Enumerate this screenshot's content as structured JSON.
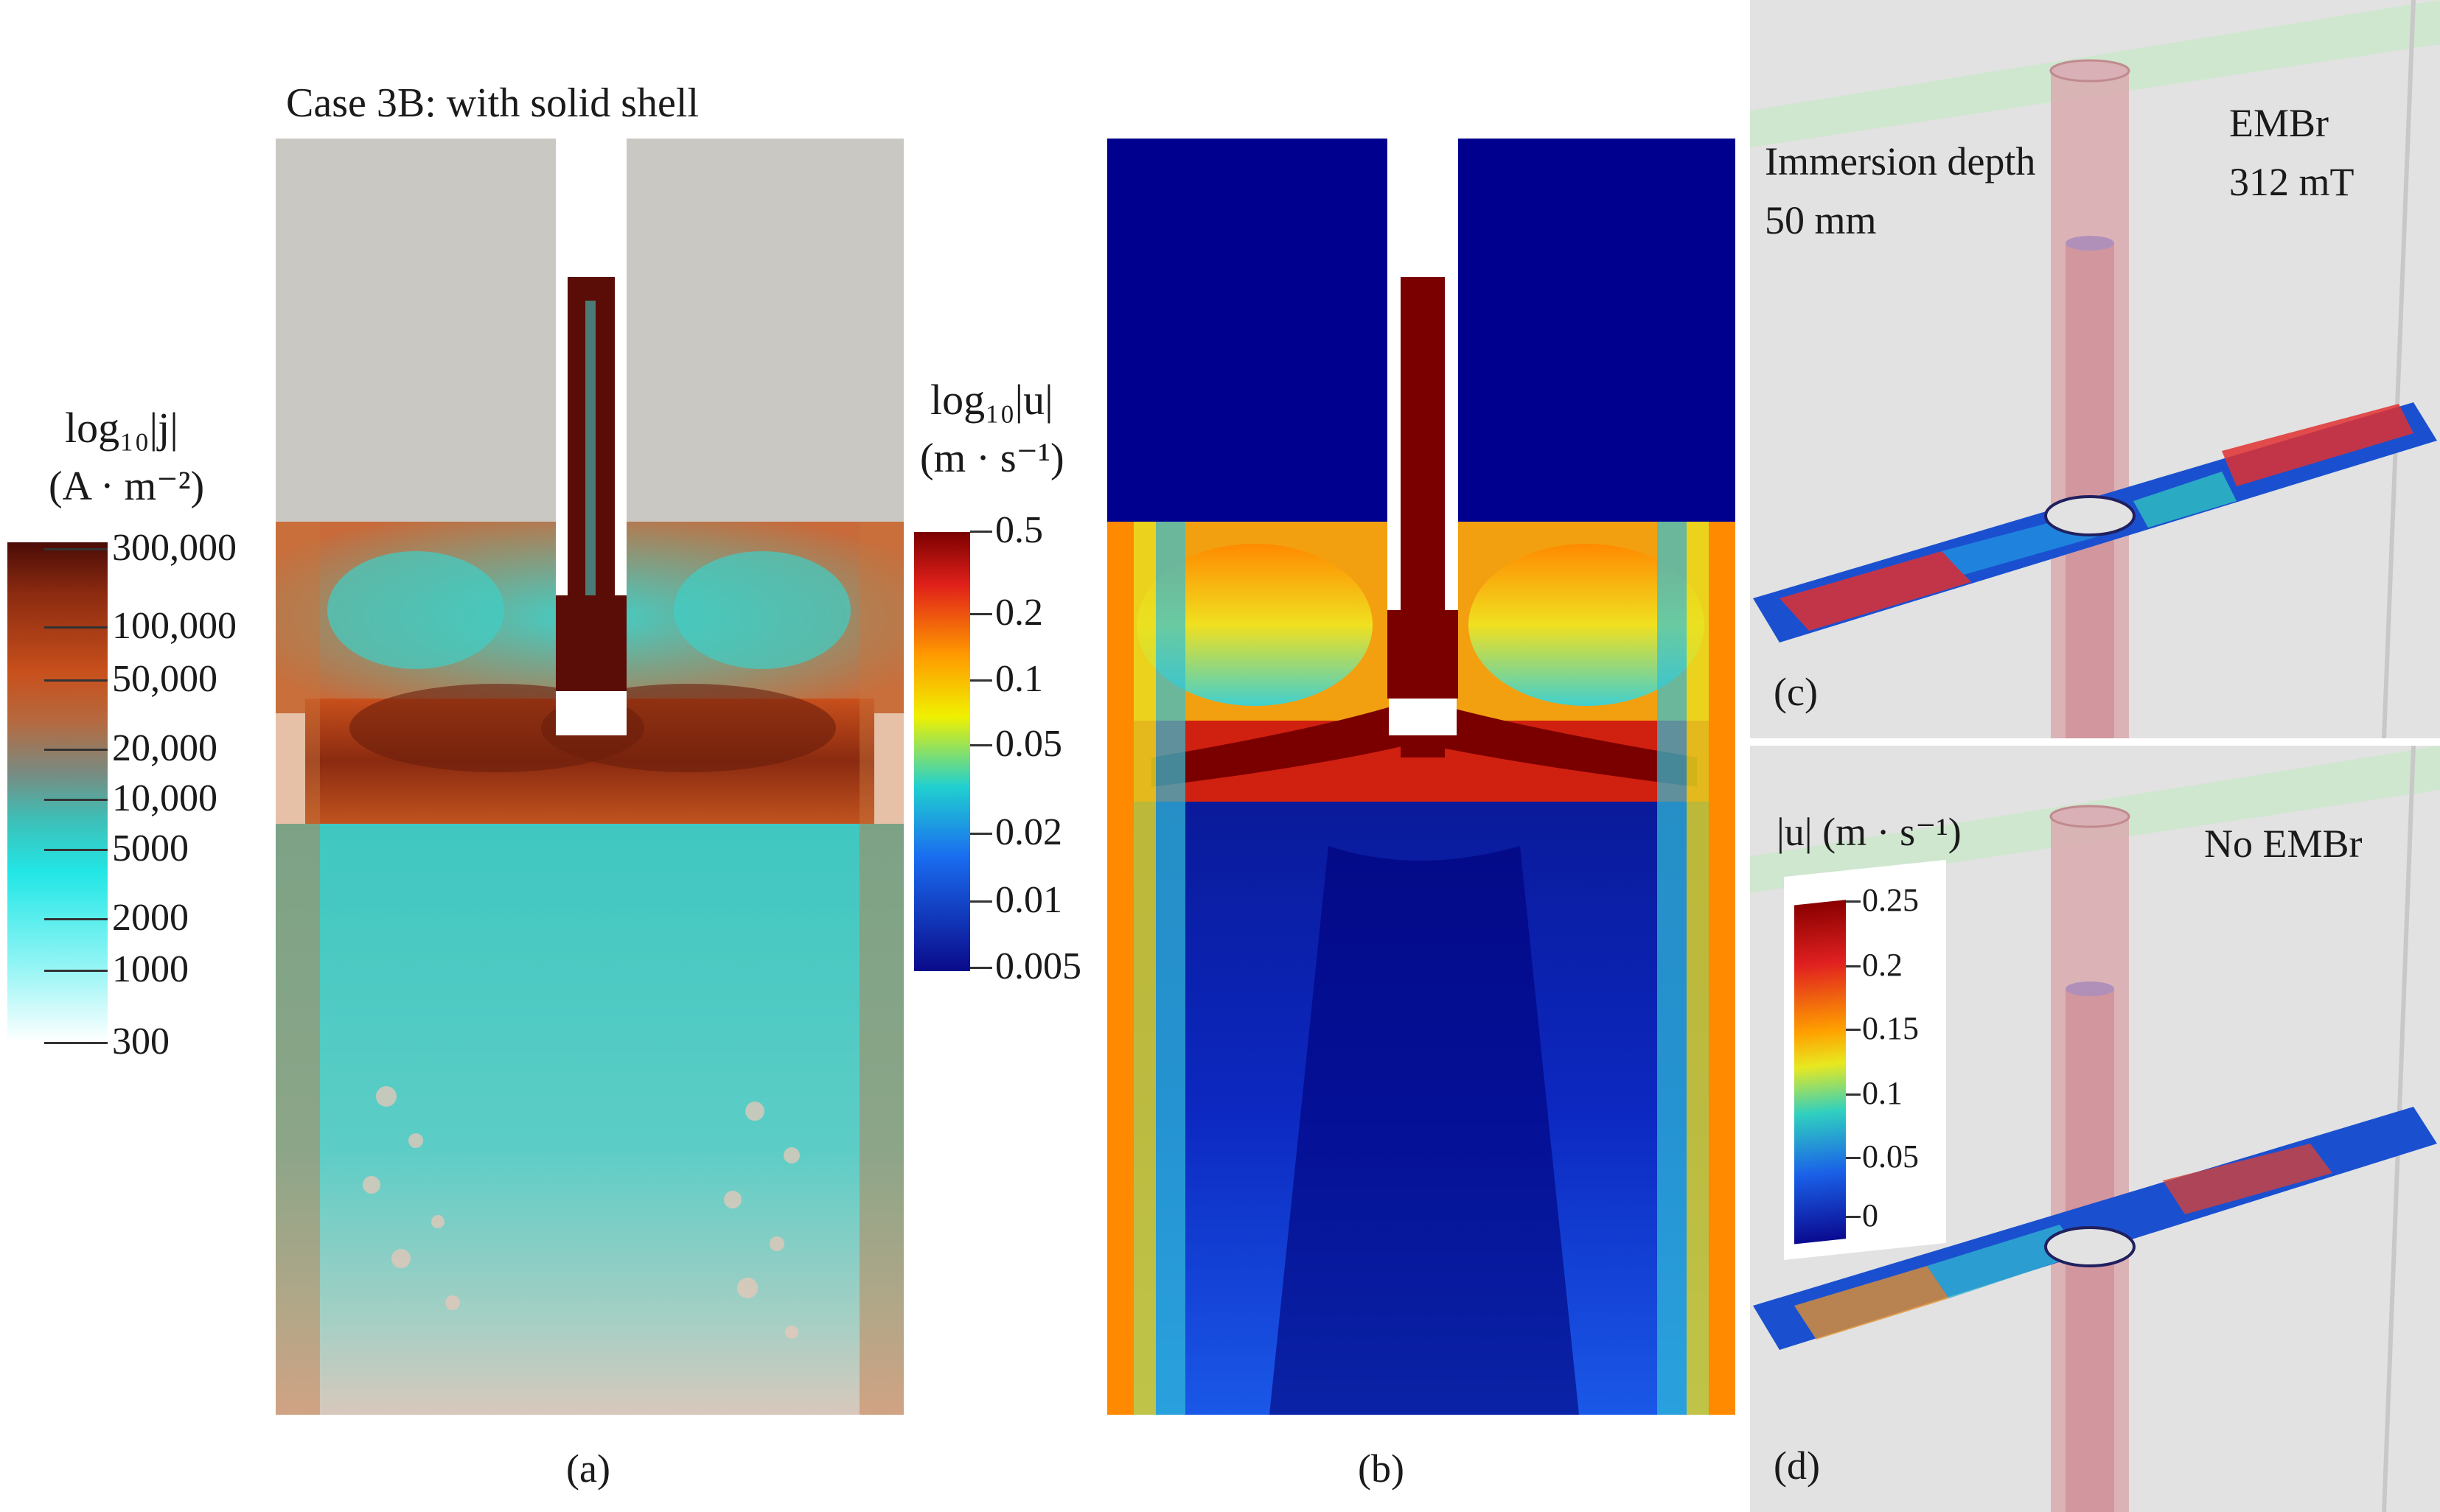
{
  "figure": {
    "panel_a": {
      "title": "Case 3B: with solid shell",
      "caption": "(a)",
      "colorbar": {
        "label_line1": "log₁₀|j|",
        "label_line2": "(A · m⁻²)",
        "ticks": [
          "300,000",
          "100,000",
          "50,000",
          "20,000",
          "10,000",
          "5000",
          "2000",
          "1000",
          "300"
        ],
        "colors": [
          "#4a0c06",
          "#8a2a10",
          "#c8501c",
          "#7a8a80",
          "#3fbdb5",
          "#22e6e6",
          "#8ef4f4",
          "#ffffff"
        ]
      }
    },
    "panel_b": {
      "caption": "(b)",
      "colorbar": {
        "label_line1": "log₁₀|u|",
        "label_line2": "(m · s⁻¹)",
        "ticks": [
          "0.5",
          "0.2",
          "0.1",
          "0.05",
          "0.02",
          "0.01",
          "0.005"
        ],
        "colors": [
          "#7a0000",
          "#e0201a",
          "#ff9a00",
          "#f0f000",
          "#20d0d0",
          "#1a6cf0",
          "#0a0a8a"
        ]
      }
    },
    "panel_c": {
      "caption": "(c)",
      "text_left_line1": "Immersion depth",
      "text_left_line2": "50 mm",
      "text_right_line1": "EMBr",
      "text_right_line2": "312 mT"
    },
    "panel_d": {
      "caption": "(d)",
      "text_right": "No EMBr",
      "colorbar": {
        "label": "|u| (m · s⁻¹)",
        "ticks": [
          "0.25",
          "0.2",
          "0.15",
          "0.1",
          "0.05",
          "0"
        ],
        "colors": [
          "#8a0000",
          "#e02020",
          "#ffa000",
          "#e8e820",
          "#30d0c0",
          "#1a60e8",
          "#0a0a90"
        ]
      }
    }
  }
}
